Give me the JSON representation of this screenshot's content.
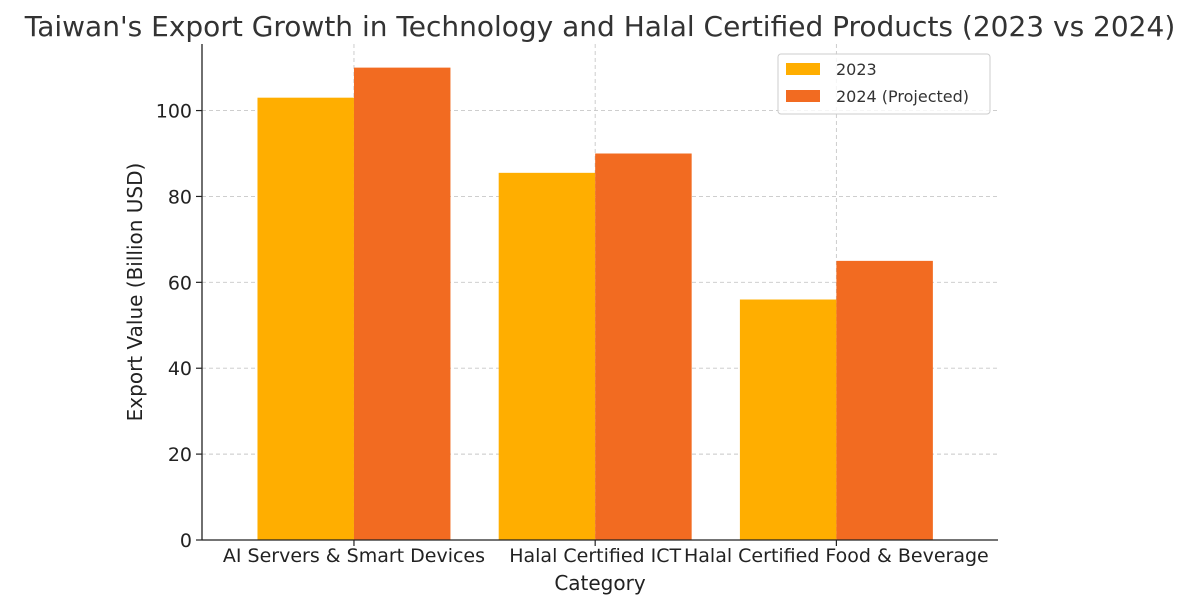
{
  "chart_data": {
    "type": "bar",
    "title": "Taiwan's Export Growth in Technology and Halal Certified Products (2023 vs 2024)",
    "xlabel": "Category",
    "ylabel": "Export Value (Billion USD)",
    "categories": [
      "AI Servers & Smart Devices",
      "Halal Certified ICT",
      "Halal Certified Food & Beverage"
    ],
    "series": [
      {
        "name": "2023",
        "values": [
          103,
          85.5,
          56
        ],
        "color": "#FFAE00"
      },
      {
        "name": "2024 (Projected)",
        "values": [
          110,
          90,
          65
        ],
        "color": "#F26B21"
      }
    ],
    "ylim": [
      0,
      115.5
    ],
    "yticks": [
      0,
      20,
      40,
      60,
      80,
      100
    ],
    "grid": true,
    "legend_position": "top-right"
  }
}
